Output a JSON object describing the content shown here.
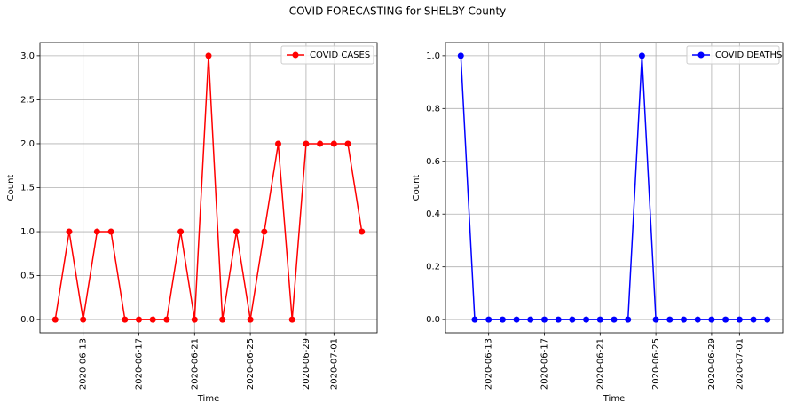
{
  "title": "COVID FORECASTING for SHELBY County",
  "chart_data": [
    {
      "type": "line",
      "xlabel": "Time",
      "ylabel": "Count",
      "x": [
        "2020-06-11",
        "2020-06-12",
        "2020-06-13",
        "2020-06-14",
        "2020-06-15",
        "2020-06-16",
        "2020-06-17",
        "2020-06-18",
        "2020-06-19",
        "2020-06-20",
        "2020-06-21",
        "2020-06-22",
        "2020-06-23",
        "2020-06-24",
        "2020-06-25",
        "2020-06-26",
        "2020-06-27",
        "2020-06-28",
        "2020-06-29",
        "2020-06-30",
        "2020-07-01",
        "2020-07-02",
        "2020-07-03"
      ],
      "series": [
        {
          "name": "COVID CASES",
          "color": "#ff0000",
          "values": [
            0,
            1,
            0,
            1,
            1,
            0,
            0,
            0,
            0,
            1,
            0,
            3,
            0,
            1,
            0,
            1,
            2,
            0,
            2,
            2,
            2,
            2,
            1
          ]
        }
      ],
      "xlim": [
        "2020-06-09T21:36",
        "2020-07-04T02:24"
      ],
      "xticks": [
        "2020-06-13",
        "2020-06-17",
        "2020-06-21",
        "2020-06-25",
        "2020-06-29",
        "2020-07-01"
      ],
      "ylim": [
        -0.15,
        3.15
      ],
      "yticks": [
        {
          "value": 0,
          "label": "0.0"
        },
        0.5,
        {
          "value": 1,
          "label": "1.0"
        },
        1.5,
        {
          "value": 2,
          "label": "2.0"
        },
        2.5,
        {
          "value": 3,
          "label": "3.0"
        }
      ],
      "grid": true,
      "legend": "upper right"
    },
    {
      "type": "line",
      "xlabel": "Time",
      "ylabel": "Count",
      "x": [
        "2020-06-11",
        "2020-06-12",
        "2020-06-13",
        "2020-06-14",
        "2020-06-15",
        "2020-06-16",
        "2020-06-17",
        "2020-06-18",
        "2020-06-19",
        "2020-06-20",
        "2020-06-21",
        "2020-06-22",
        "2020-06-23",
        "2020-06-24",
        "2020-06-25",
        "2020-06-26",
        "2020-06-27",
        "2020-06-28",
        "2020-06-29",
        "2020-06-30",
        "2020-07-01",
        "2020-07-02",
        "2020-07-03"
      ],
      "series": [
        {
          "name": "COVID DEATHS",
          "color": "#0000ff",
          "values": [
            1,
            0,
            0,
            0,
            0,
            0,
            0,
            0,
            0,
            0,
            0,
            0,
            0,
            1,
            0,
            0,
            0,
            0,
            0,
            0,
            0,
            0,
            0
          ]
        }
      ],
      "xlim": [
        "2020-06-09T21:36",
        "2020-07-04T02:24"
      ],
      "xticks": [
        "2020-06-13",
        "2020-06-17",
        "2020-06-21",
        "2020-06-25",
        "2020-06-29",
        "2020-07-01"
      ],
      "ylim": [
        -0.05,
        1.05
      ],
      "yticks": [
        {
          "value": 0,
          "label": "0.0"
        },
        0.2,
        0.4,
        0.6,
        0.8,
        {
          "value": 1,
          "label": "1.0"
        }
      ],
      "grid": true,
      "legend": "upper right"
    }
  ]
}
